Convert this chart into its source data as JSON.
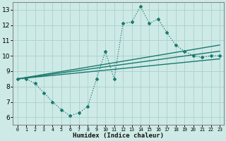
{
  "background_color": "#ceeae6",
  "grid_color": "#aed4d0",
  "line_color": "#1a7a6e",
  "xlabel": "Humidex (Indice chaleur)",
  "xlim": [
    -0.5,
    23.5
  ],
  "ylim": [
    5.5,
    13.5
  ],
  "xticks": [
    0,
    1,
    2,
    3,
    4,
    5,
    6,
    7,
    8,
    9,
    10,
    11,
    12,
    13,
    14,
    15,
    16,
    17,
    18,
    19,
    20,
    21,
    22,
    23
  ],
  "yticks": [
    6,
    7,
    8,
    9,
    10,
    11,
    12,
    13
  ],
  "dotted_x": [
    0,
    1,
    2,
    3,
    4,
    5,
    6,
    7,
    8,
    9,
    10,
    11,
    12,
    13,
    14,
    15,
    16,
    17,
    18,
    19,
    20,
    21,
    22,
    23
  ],
  "dotted_y": [
    8.5,
    8.5,
    8.2,
    7.6,
    7.0,
    6.5,
    6.1,
    6.3,
    6.7,
    8.5,
    10.3,
    8.5,
    12.1,
    12.2,
    13.2,
    12.1,
    12.4,
    11.5,
    10.7,
    10.3,
    10.0,
    9.9,
    10.0,
    10.0
  ],
  "lines": [
    {
      "x": [
        0,
        23
      ],
      "y": [
        8.5,
        9.8
      ]
    },
    {
      "x": [
        0,
        23
      ],
      "y": [
        8.5,
        10.3
      ]
    },
    {
      "x": [
        0,
        23
      ],
      "y": [
        8.5,
        10.7
      ]
    }
  ]
}
